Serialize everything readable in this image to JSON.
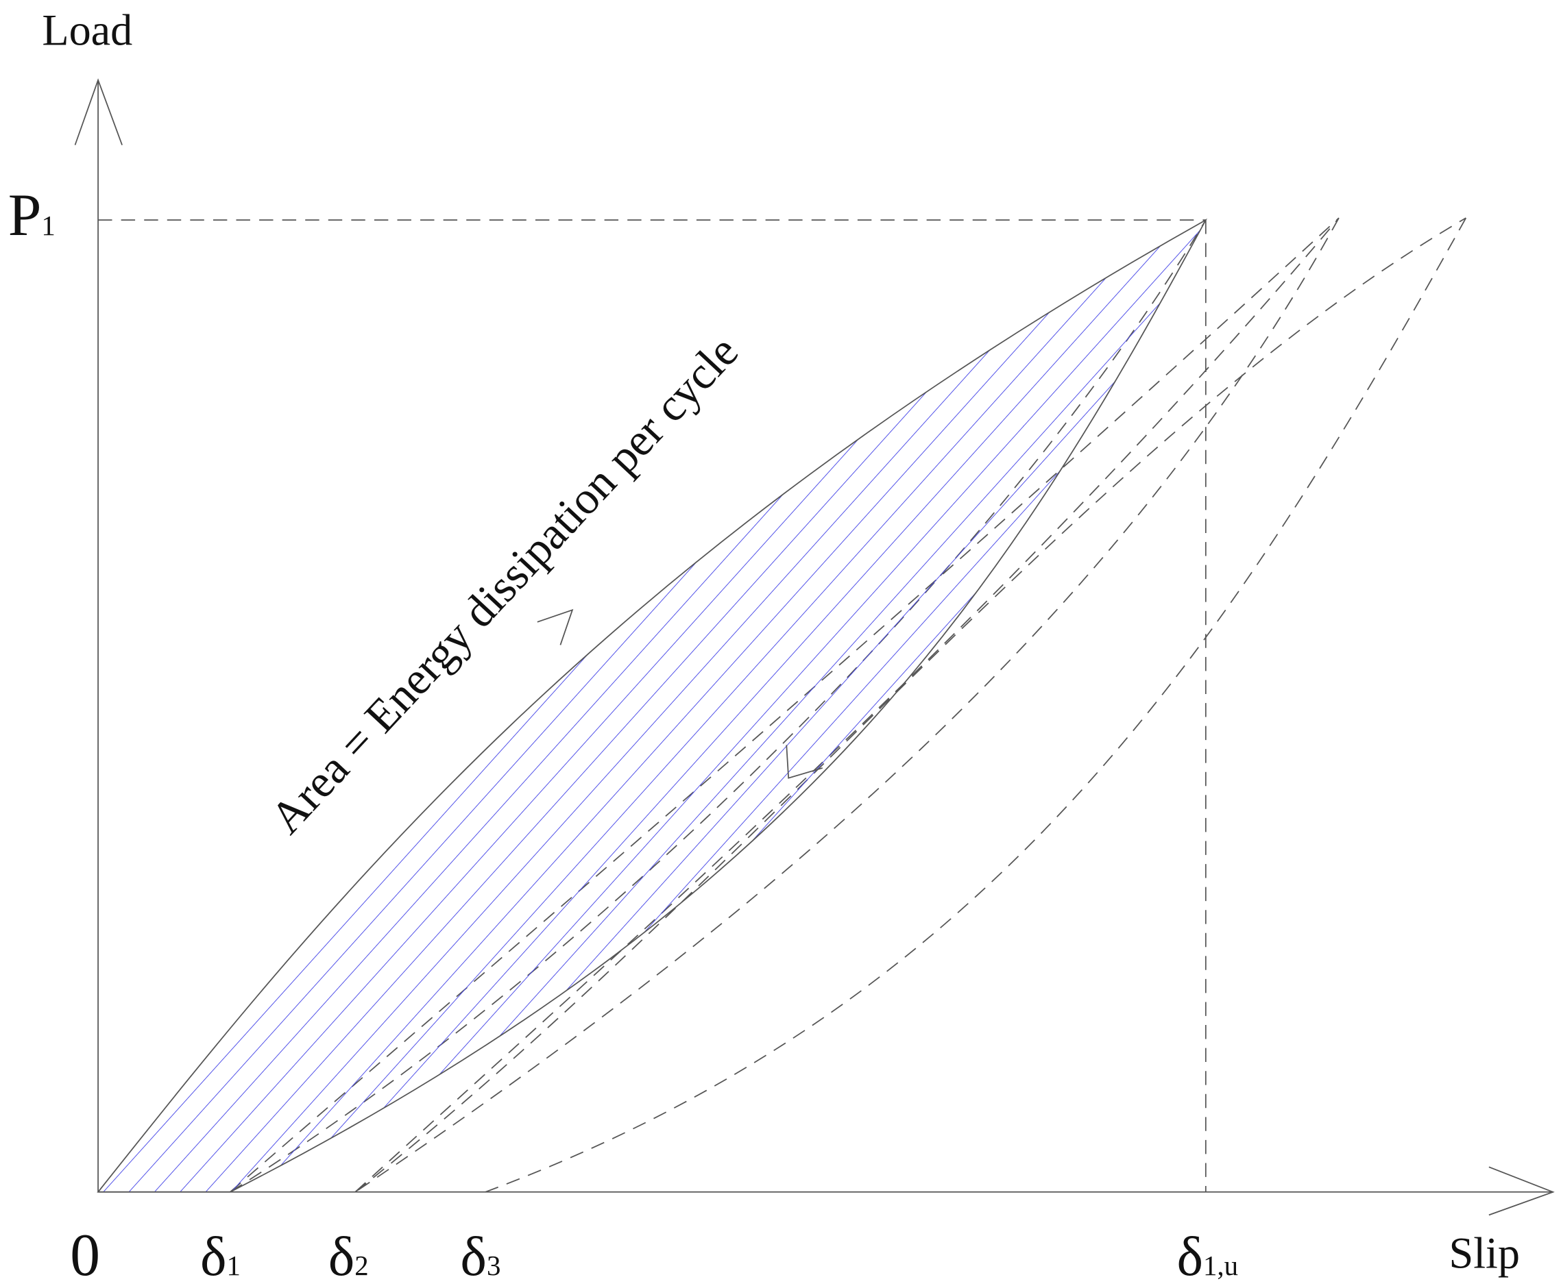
{
  "y_axis": {
    "label": "Load",
    "ticks": [
      {
        "base": "P",
        "sub": "1"
      }
    ]
  },
  "x_axis": {
    "label": "Slip",
    "origin": "0",
    "ticks": [
      {
        "base": "δ",
        "sub": "1"
      },
      {
        "base": "δ",
        "sub": "2"
      },
      {
        "base": "δ",
        "sub": "3"
      },
      {
        "base": "δ",
        "sub": "1,u"
      }
    ]
  },
  "annotation": "Area = Energy dissipation per cycle"
}
